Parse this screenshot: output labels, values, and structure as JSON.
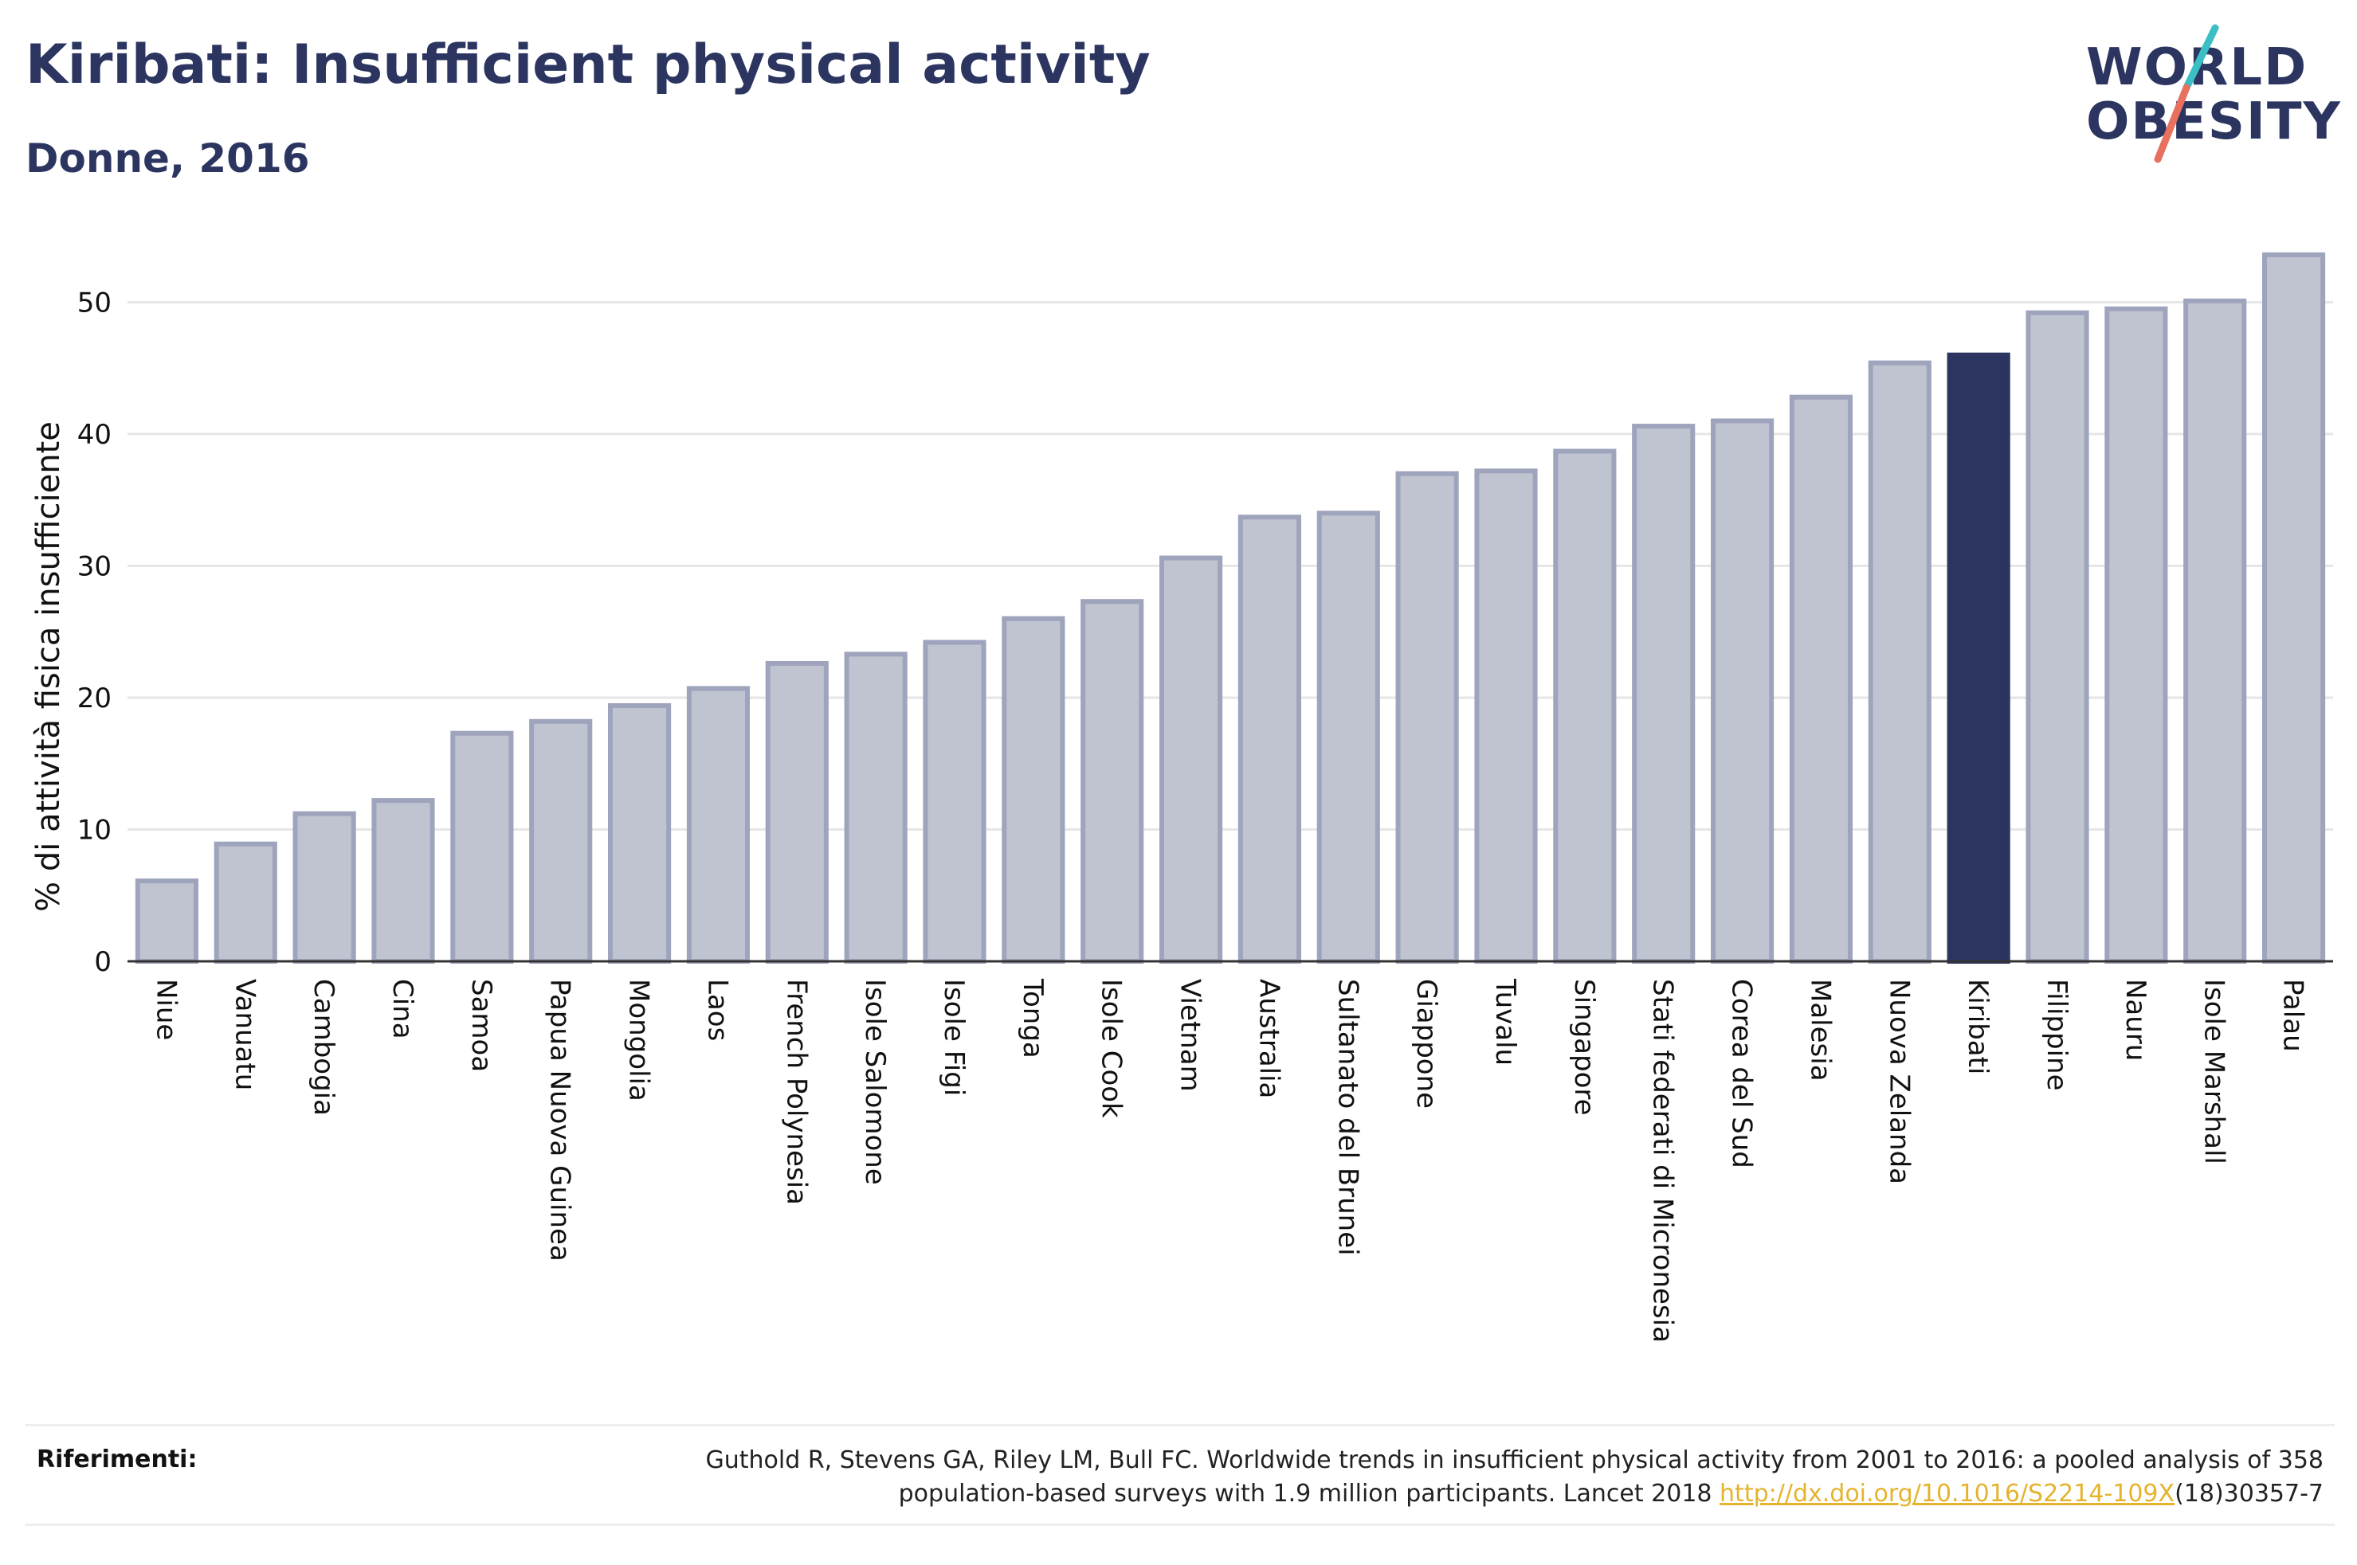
{
  "header": {
    "title": "Kiribati: Insufficient physical activity",
    "subtitle": "Donne, 2016"
  },
  "logo": {
    "line1": "WORLD",
    "line2": "OBESITY",
    "slash_color_top": "#3bbfc4",
    "slash_color_bottom": "#e8705f"
  },
  "footer": {
    "label": "Riferimenti:",
    "reference_line1": "Guthold R, Stevens GA, Riley LM, Bull FC. Worldwide trends in insufficient physical activity from 2001 to 2016: a pooled analysis of 358",
    "reference_line2_prefix": "population-based surveys with 1.9 million participants. Lancet 2018 ",
    "reference_link": "http://dx.doi.org/10.1016/S2214-109X",
    "reference_line2_suffix": "(18)30357-7"
  },
  "chart_data": {
    "type": "bar",
    "title": "Kiribati: Insufficient physical activity",
    "subtitle": "Donne, 2016",
    "ylabel": "% di attività fisica insufficiente",
    "xlabel": "",
    "ylim": [
      0,
      55
    ],
    "yticks": [
      0,
      10,
      20,
      30,
      40,
      50
    ],
    "grid": true,
    "highlight": "Kiribati",
    "colors": {
      "bar_fill": "#c0c3d0",
      "bar_border": "#9fa4bd",
      "highlight": "#2b3560",
      "grid": "#e6e6e6",
      "axis": "#333333"
    },
    "categories": [
      "Niue",
      "Vanuatu",
      "Cambogia",
      "Cina",
      "Samoa",
      "Papua Nuova Guinea",
      "Mongolia",
      "Laos",
      "French Polynesia",
      "Isole Salomone",
      "Isole Figi",
      "Tonga",
      "Isole Cook",
      "Vietnam",
      "Australia",
      "Sultanato del Brunei",
      "Giappone",
      "Tuvalu",
      "Singapore",
      "Stati federati di Micronesia",
      "Corea del Sud",
      "Malesia",
      "Nuova Zelanda",
      "Kiribati",
      "Filippine",
      "Nauru",
      "Isole Marshall",
      "Palau"
    ],
    "values": [
      6.1,
      8.9,
      11.2,
      12.2,
      17.3,
      18.2,
      19.4,
      20.7,
      22.6,
      23.3,
      24.2,
      26.0,
      27.3,
      30.6,
      33.7,
      34.0,
      37.0,
      37.2,
      38.7,
      40.6,
      41.0,
      42.8,
      45.4,
      46.0,
      49.2,
      49.5,
      50.1,
      53.6
    ]
  }
}
